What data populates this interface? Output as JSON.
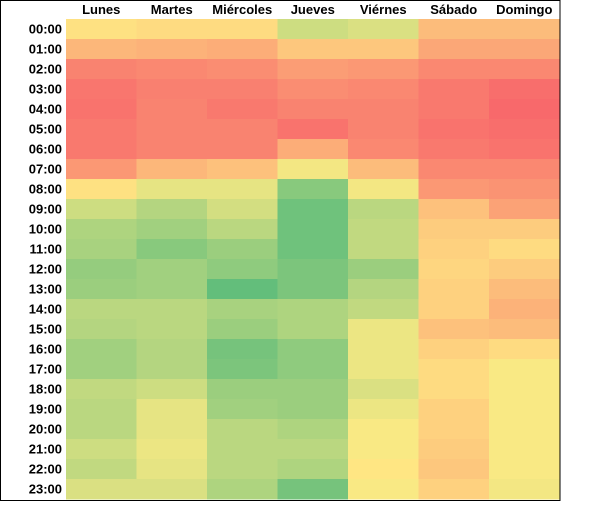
{
  "chart_data": {
    "type": "heatmap",
    "columns": [
      "Lunes",
      "Martes",
      "Miércoles",
      "Jueves",
      "Viérnes",
      "Sábado",
      "Domingo"
    ],
    "rows": [
      "00:00",
      "01:00",
      "02:00",
      "03:00",
      "04:00",
      "05:00",
      "06:00",
      "07:00",
      "08:00",
      "09:00",
      "10:00",
      "11:00",
      "12:00",
      "13:00",
      "14:00",
      "15:00",
      "16:00",
      "17:00",
      "18:00",
      "19:00",
      "20:00",
      "21:00",
      "22:00",
      "23:00"
    ],
    "values": [
      [
        0.46,
        0.44,
        0.44,
        0.66,
        0.62,
        0.32,
        0.32
      ],
      [
        0.3,
        0.28,
        0.26,
        0.36,
        0.36,
        0.24,
        0.24
      ],
      [
        0.1,
        0.12,
        0.14,
        0.2,
        0.18,
        0.12,
        0.12
      ],
      [
        0.05,
        0.09,
        0.09,
        0.14,
        0.12,
        0.06,
        0.02
      ],
      [
        0.04,
        0.1,
        0.06,
        0.1,
        0.1,
        0.06,
        0.0
      ],
      [
        0.06,
        0.1,
        0.1,
        0.04,
        0.1,
        0.04,
        0.02
      ],
      [
        0.06,
        0.1,
        0.1,
        0.26,
        0.12,
        0.06,
        0.04
      ],
      [
        0.18,
        0.3,
        0.34,
        0.54,
        0.32,
        0.12,
        0.12
      ],
      [
        0.46,
        0.58,
        0.58,
        0.88,
        0.54,
        0.18,
        0.16
      ],
      [
        0.66,
        0.74,
        0.64,
        0.96,
        0.72,
        0.34,
        0.22
      ],
      [
        0.76,
        0.8,
        0.72,
        0.96,
        0.7,
        0.38,
        0.38
      ],
      [
        0.78,
        0.88,
        0.82,
        0.96,
        0.7,
        0.4,
        0.44
      ],
      [
        0.84,
        0.8,
        0.86,
        0.92,
        0.82,
        0.42,
        0.38
      ],
      [
        0.82,
        0.8,
        1.0,
        0.92,
        0.74,
        0.4,
        0.32
      ],
      [
        0.72,
        0.72,
        0.78,
        0.76,
        0.7,
        0.4,
        0.28
      ],
      [
        0.74,
        0.72,
        0.82,
        0.76,
        0.56,
        0.34,
        0.32
      ],
      [
        0.8,
        0.74,
        0.94,
        0.86,
        0.56,
        0.4,
        0.44
      ],
      [
        0.8,
        0.74,
        0.92,
        0.86,
        0.56,
        0.44,
        0.52
      ],
      [
        0.7,
        0.66,
        0.82,
        0.82,
        0.62,
        0.44,
        0.52
      ],
      [
        0.72,
        0.58,
        0.8,
        0.82,
        0.56,
        0.4,
        0.52
      ],
      [
        0.72,
        0.58,
        0.72,
        0.76,
        0.52,
        0.4,
        0.52
      ],
      [
        0.66,
        0.56,
        0.72,
        0.72,
        0.52,
        0.38,
        0.52
      ],
      [
        0.7,
        0.58,
        0.72,
        0.76,
        0.48,
        0.36,
        0.52
      ],
      [
        0.62,
        0.62,
        0.76,
        0.94,
        0.52,
        0.4,
        0.54
      ]
    ],
    "color_scale": [
      "#f8696b",
      "#ffeb84",
      "#63be7b"
    ],
    "grid": false,
    "legend": "none"
  }
}
